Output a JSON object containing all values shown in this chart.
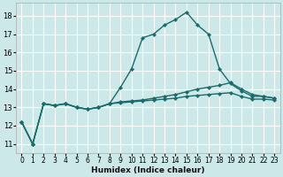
{
  "xlabel": "Humidex (Indice chaleur)",
  "bg_color": "#cde8e8",
  "grid_color": "#ffffff",
  "line_color": "#1a6b6b",
  "xlim": [
    -0.5,
    23.5
  ],
  "ylim": [
    10.5,
    18.7
  ],
  "yticks": [
    11,
    12,
    13,
    14,
    15,
    16,
    17,
    18
  ],
  "xticks": [
    0,
    1,
    2,
    3,
    4,
    5,
    6,
    7,
    8,
    9,
    10,
    11,
    12,
    13,
    14,
    15,
    16,
    17,
    18,
    19,
    20,
    21,
    22,
    23
  ],
  "series1_y": [
    12.2,
    11.0,
    13.2,
    13.1,
    13.2,
    13.0,
    12.9,
    13.0,
    13.2,
    14.1,
    15.1,
    16.8,
    17.0,
    17.5,
    17.8,
    18.2,
    17.5,
    17.0,
    15.1,
    14.3,
    13.9,
    13.6,
    13.6,
    13.5
  ],
  "series2_y": [
    12.2,
    11.0,
    13.2,
    13.1,
    13.2,
    13.0,
    12.9,
    13.0,
    13.2,
    13.3,
    13.35,
    13.4,
    13.5,
    13.6,
    13.7,
    13.85,
    14.0,
    14.1,
    14.2,
    14.35,
    14.0,
    13.7,
    13.6,
    13.5
  ],
  "series3_y": [
    12.2,
    11.0,
    13.2,
    13.1,
    13.2,
    13.0,
    12.9,
    13.0,
    13.2,
    13.25,
    13.3,
    13.35,
    13.4,
    13.45,
    13.5,
    13.6,
    13.65,
    13.7,
    13.75,
    13.8,
    13.6,
    13.45,
    13.45,
    13.4
  ],
  "xlabel_fontsize": 6.5,
  "tick_fontsize": 5.5,
  "linewidth": 1.0,
  "markersize": 2.2
}
